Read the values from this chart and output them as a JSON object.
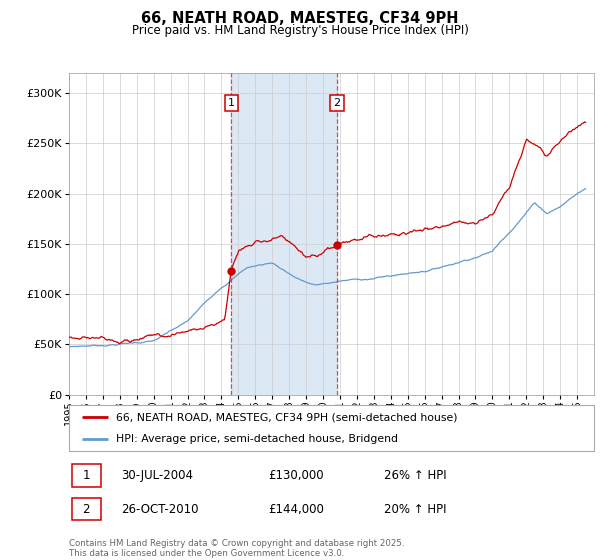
{
  "title": "66, NEATH ROAD, MAESTEG, CF34 9PH",
  "subtitle": "Price paid vs. HM Land Registry's House Price Index (HPI)",
  "legend_line1": "66, NEATH ROAD, MAESTEG, CF34 9PH (semi-detached house)",
  "legend_line2": "HPI: Average price, semi-detached house, Bridgend",
  "sale1_label": "1",
  "sale1_date": "30-JUL-2004",
  "sale1_price": "£130,000",
  "sale1_hpi": "26% ↑ HPI",
  "sale2_label": "2",
  "sale2_date": "26-OCT-2010",
  "sale2_price": "£144,000",
  "sale2_hpi": "20% ↑ HPI",
  "copyright": "Contains HM Land Registry data © Crown copyright and database right 2025.\nThis data is licensed under the Open Government Licence v3.0.",
  "property_color": "#cc0000",
  "hpi_color": "#6699cc",
  "shading_color": "#dce9f5",
  "ylim": [
    0,
    320000
  ],
  "yticks": [
    0,
    50000,
    100000,
    150000,
    200000,
    250000,
    300000
  ],
  "year_start": 1995,
  "year_end": 2026,
  "marker1_year": 2004.58,
  "marker2_year": 2010.83
}
